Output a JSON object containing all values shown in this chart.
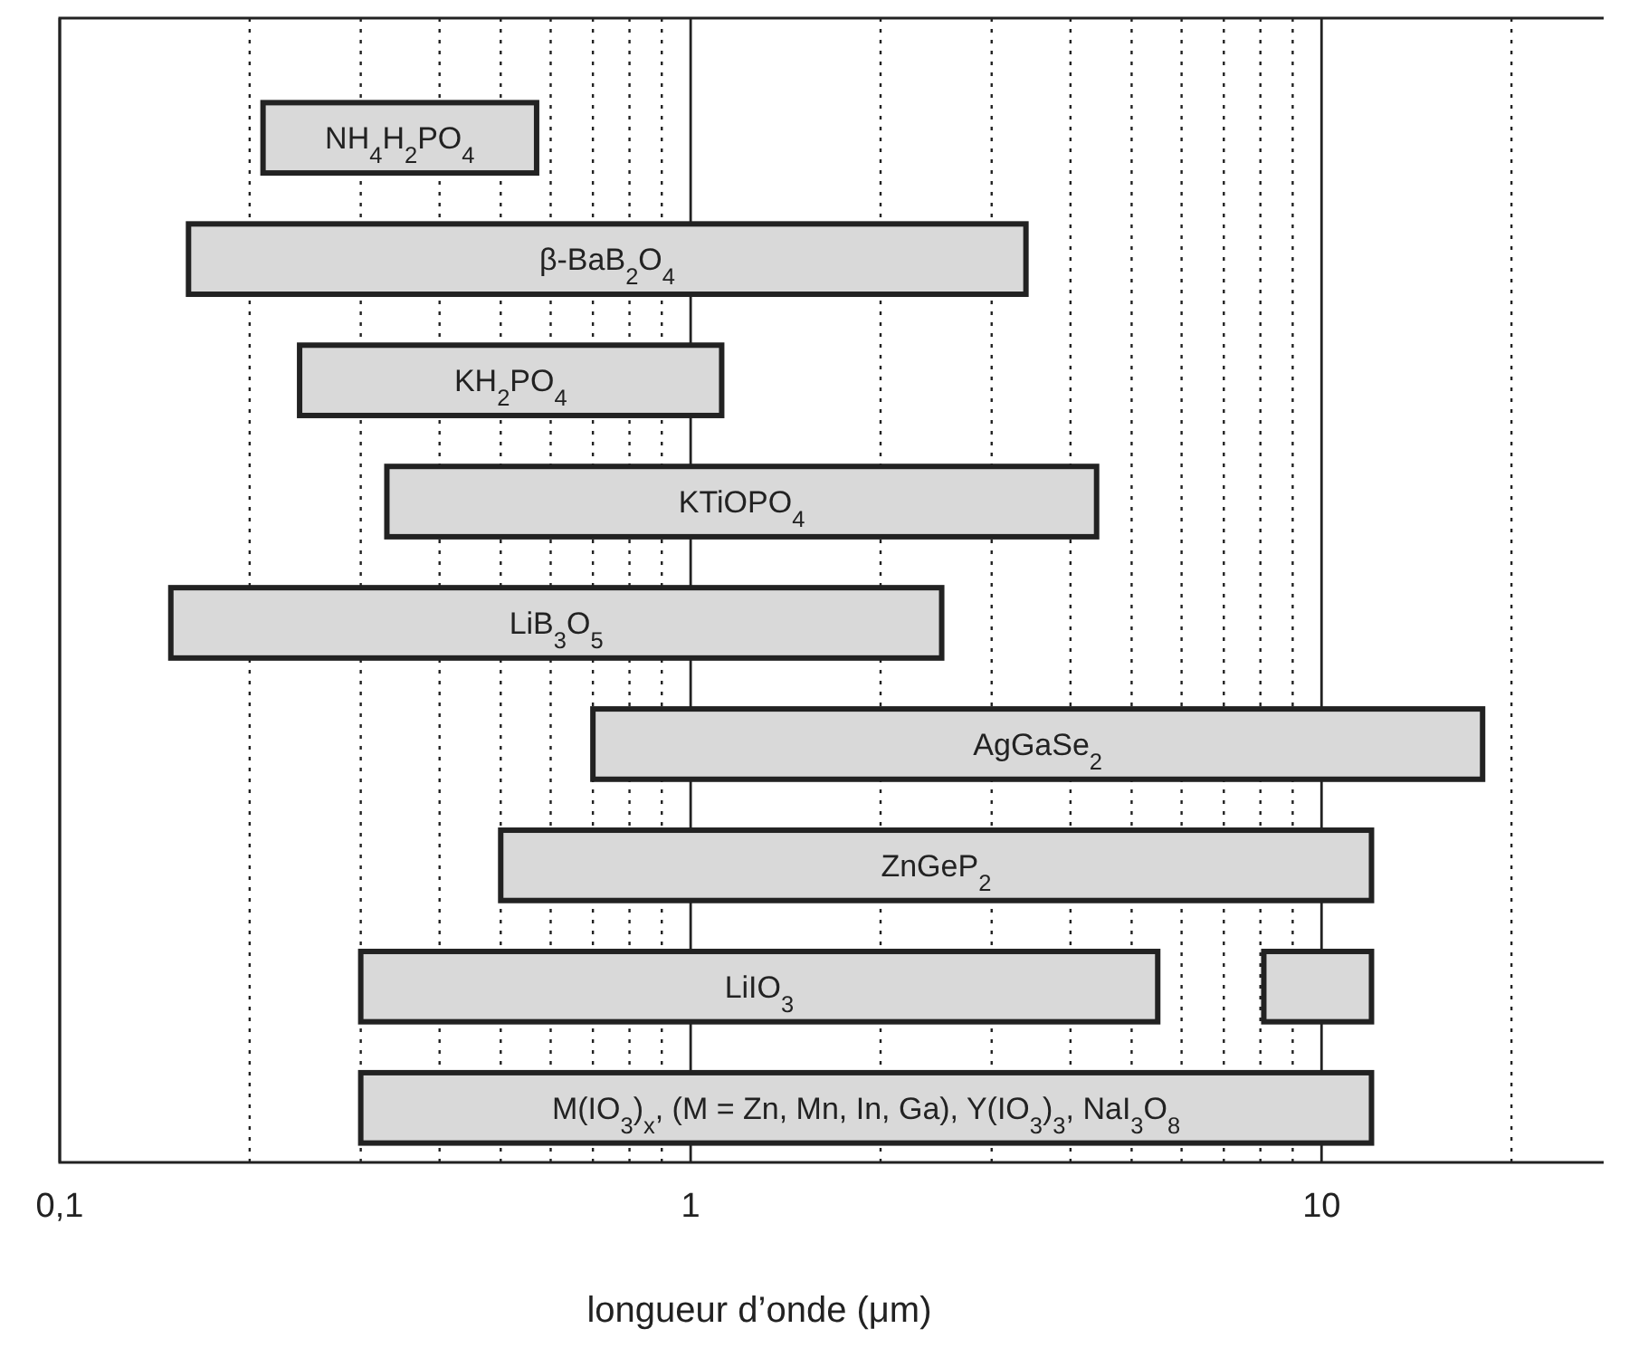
{
  "chart_data": {
    "type": "bar",
    "orientation": "horizontal",
    "xlabel": "longueur d’onde (μm)",
    "log": "x",
    "grid": "x",
    "xlim": [
      0.1,
      28
    ],
    "xticks": [
      {
        "value": 0.1,
        "label": "0,1"
      },
      {
        "value": 0.2,
        "label": null
      },
      {
        "value": 0.3,
        "label": null
      },
      {
        "value": 0.4,
        "label": null
      },
      {
        "value": 0.5,
        "label": null
      },
      {
        "value": 0.6,
        "label": null
      },
      {
        "value": 0.7,
        "label": null
      },
      {
        "value": 0.8,
        "label": null
      },
      {
        "value": 0.9,
        "label": null
      },
      1,
      {
        "value": 2,
        "label": null
      },
      {
        "value": 3,
        "label": null
      },
      {
        "value": 4,
        "label": null
      },
      {
        "value": 5,
        "label": null
      },
      {
        "value": 6,
        "label": null
      },
      {
        "value": 7,
        "label": null
      },
      {
        "value": 8,
        "label": null
      },
      {
        "value": 9,
        "label": null
      },
      10,
      {
        "value": 20,
        "label": null
      }
    ],
    "categories": [
      "NH$_{4}$H$_{2}$PO$_{4}$",
      "β-BaB$_{2}$O$_{4}$",
      "KH$_{2}$PO$_{4}$",
      "KTiOPO$_{4}$",
      "LiB$_{3}$O$_{5}$",
      "AgGaSe$_{2}$",
      "ZnGeP$_{2}$",
      "LiIO$_{3}$",
      "M(IO$_{3}$)$_{x}$, (M = Zn, Mn, In, Ga), Y(IO$_{3}$)$_{3}$, NaI$_{3}$O$_{8}$"
    ],
    "series": [
      {
        "color": "#d9d9d9",
        "base": [
          0.21,
          0.16,
          0.24,
          0.33,
          0.15,
          0.7,
          0.5,
          0.3,
          0.3
        ],
        "values": [
          0.36,
          3.24,
          0.88,
          4.07,
          2.35,
          17.3,
          11.5,
          5.2,
          11.7
        ]
      },
      {
        "color": "#d9d9d9",
        "base": [
          null,
          null,
          null,
          null,
          null,
          null,
          null,
          8.1,
          null
        ],
        "values": [
          null,
          null,
          null,
          null,
          null,
          null,
          null,
          3.9,
          null
        ]
      }
    ]
  }
}
